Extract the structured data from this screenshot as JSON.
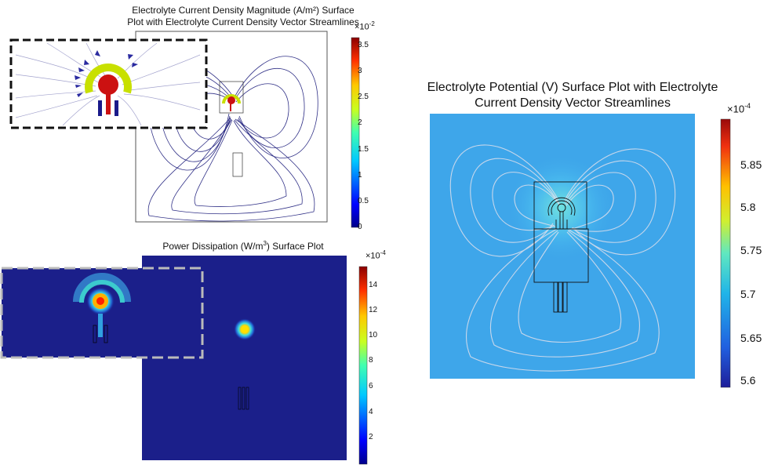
{
  "plots": [
    {
      "id": "current-density",
      "title_line1": "Electrolyte Current Density Magnitude (A/m²) Surface",
      "title_line2": "Plot with Electrolyte Current Density Vector Streamlines",
      "colorbar": {
        "exponent_base": "×10",
        "exponent": "-2",
        "ticks": [
          "3.5",
          "3",
          "2.5",
          "2",
          "1.5",
          "1",
          "0.5",
          "0"
        ]
      }
    },
    {
      "id": "power-dissipation",
      "title_prefix": "Power Dissipation (W/m",
      "title_sup": "3",
      "title_suffix": ") Surface Plot",
      "colorbar": {
        "exponent_base": "×10",
        "exponent": "-4",
        "ticks": [
          "14",
          "12",
          "10",
          "8",
          "6",
          "4",
          "2"
        ]
      }
    },
    {
      "id": "electrolyte-potential",
      "title_line1": "Electrolyte Potential (V) Surface Plot with Electrolyte",
      "title_line2": "Current Density Vector Streamlines",
      "colorbar": {
        "exponent_base": "×10",
        "exponent": "-4",
        "ticks": [
          "5.85",
          "5.8",
          "5.75",
          "5.7",
          "5.65",
          "5.6"
        ]
      }
    }
  ],
  "colors": {
    "jet_top": "#8b0000",
    "jet_bottom": "#00008b",
    "potential_bg": "#3ea6ea",
    "power_bg": "#1b1f8a",
    "streamline_dark": "#1a1a7a",
    "streamline_light": "#dcdce8"
  }
}
